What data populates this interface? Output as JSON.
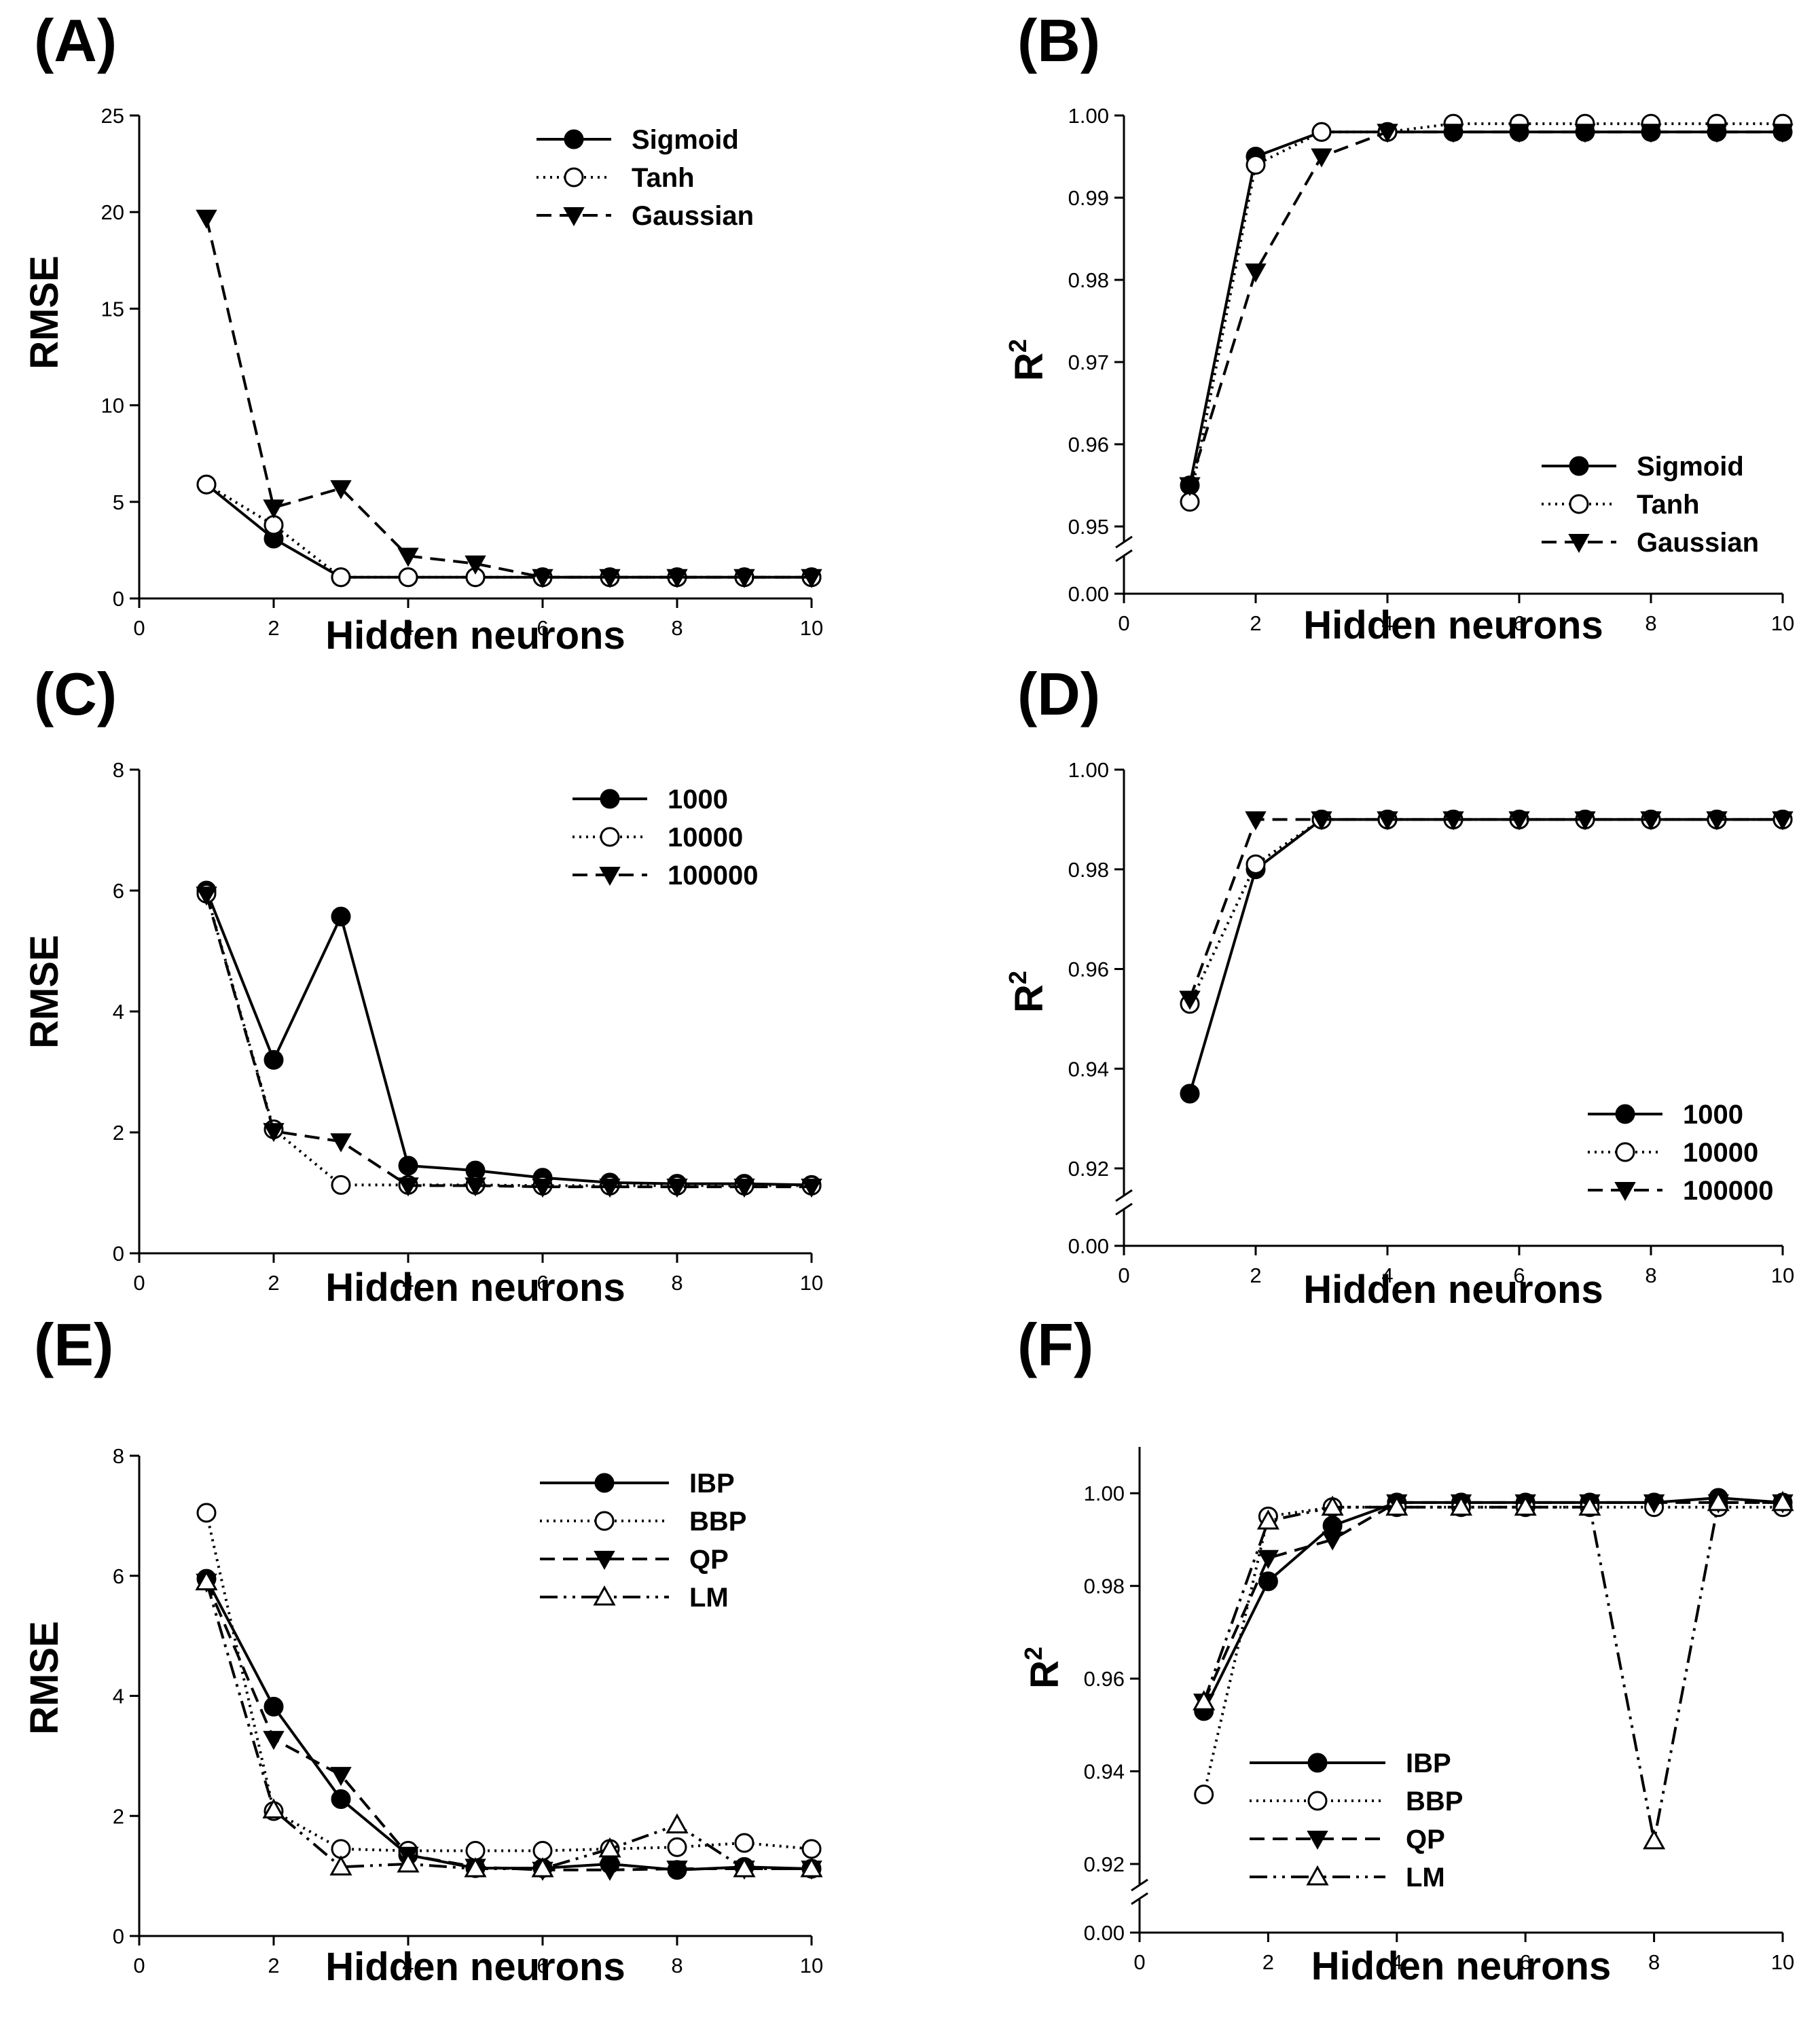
{
  "figure": {
    "x_label": "Hidden neurons"
  },
  "chart_data": [
    {
      "panel": "(A)",
      "type": "line",
      "ylabel": "RMSE",
      "xlabel": "Hidden neurons",
      "xlim": [
        0,
        10
      ],
      "ylim": [
        0,
        25
      ],
      "xticks": [
        "0",
        "2",
        "4",
        "6",
        "8",
        "10"
      ],
      "yticks": [
        "0",
        "5",
        "10",
        "15",
        "20",
        "25"
      ],
      "legend_pos": "top-right",
      "x": [
        1,
        2,
        3,
        4,
        5,
        6,
        7,
        8,
        9,
        10
      ],
      "series": [
        {
          "name": "Sigmoid",
          "marker": "filled-circle",
          "dash": "solid",
          "values": [
            5.9,
            3.1,
            1.1,
            1.1,
            1.1,
            1.1,
            1.1,
            1.1,
            1.1,
            1.1
          ]
        },
        {
          "name": "Tanh",
          "marker": "open-circle",
          "dash": "dotted",
          "values": [
            5.9,
            3.8,
            1.1,
            1.1,
            1.1,
            1.1,
            1.1,
            1.1,
            1.1,
            1.1
          ]
        },
        {
          "name": "Gaussian",
          "marker": "filled-triangle-down",
          "dash": "dashed",
          "values": [
            19.7,
            4.7,
            5.7,
            2.2,
            1.8,
            1.1,
            1.1,
            1.1,
            1.1,
            1.1
          ]
        }
      ]
    },
    {
      "panel": "(B)",
      "type": "line",
      "ylabel": "R",
      "ylabel_sup": "2",
      "xlabel": "Hidden neurons",
      "xlim": [
        0,
        10
      ],
      "ylim": [
        0.95,
        1.0
      ],
      "axis_break": true,
      "break_base": "0.00",
      "xticks": [
        "0",
        "2",
        "4",
        "6",
        "8",
        "10"
      ],
      "yticks": [
        "0.95",
        "0.96",
        "0.97",
        "0.98",
        "0.99",
        "1.00"
      ],
      "legend_pos": "bottom-right",
      "x": [
        1,
        2,
        3,
        4,
        5,
        6,
        7,
        8,
        9,
        10
      ],
      "series": [
        {
          "name": "Sigmoid",
          "marker": "filled-circle",
          "dash": "solid",
          "values": [
            0.955,
            0.995,
            0.998,
            0.998,
            0.998,
            0.998,
            0.998,
            0.998,
            0.998,
            0.998
          ]
        },
        {
          "name": "Tanh",
          "marker": "open-circle",
          "dash": "dotted",
          "values": [
            0.953,
            0.994,
            0.998,
            0.998,
            0.999,
            0.999,
            0.999,
            0.999,
            0.999,
            0.999
          ]
        },
        {
          "name": "Gaussian",
          "marker": "filled-triangle-down",
          "dash": "dashed",
          "values": [
            0.955,
            0.981,
            0.995,
            0.998,
            0.998,
            0.998,
            0.998,
            0.998,
            0.998,
            0.998
          ]
        }
      ]
    },
    {
      "panel": "(C)",
      "type": "line",
      "ylabel": "RMSE",
      "xlabel": "Hidden neurons",
      "xlim": [
        0,
        10
      ],
      "ylim": [
        0,
        8
      ],
      "xticks": [
        "0",
        "2",
        "4",
        "6",
        "8",
        "10"
      ],
      "yticks": [
        "0",
        "2",
        "4",
        "6",
        "8"
      ],
      "legend_pos": "top-right",
      "x": [
        1,
        2,
        3,
        4,
        5,
        6,
        7,
        8,
        9,
        10
      ],
      "series": [
        {
          "name": "1000",
          "marker": "filled-circle",
          "dash": "solid",
          "values": [
            6.0,
            3.2,
            5.57,
            1.45,
            1.37,
            1.25,
            1.17,
            1.15,
            1.15,
            1.13
          ]
        },
        {
          "name": "10000",
          "marker": "open-circle",
          "dash": "dotted",
          "values": [
            5.95,
            2.05,
            1.13,
            1.13,
            1.13,
            1.12,
            1.12,
            1.12,
            1.12,
            1.12
          ]
        },
        {
          "name": "100000",
          "marker": "filled-triangle-down",
          "dash": "dashed",
          "values": [
            5.93,
            2.02,
            1.85,
            1.12,
            1.12,
            1.1,
            1.1,
            1.1,
            1.1,
            1.1
          ]
        }
      ]
    },
    {
      "panel": "(D)",
      "type": "line",
      "ylabel": "R",
      "ylabel_sup": "2",
      "xlabel": "Hidden neurons",
      "xlim": [
        0,
        10
      ],
      "ylim": [
        0.92,
        1.0
      ],
      "axis_break": true,
      "break_base": "0.00",
      "xticks": [
        "0",
        "2",
        "4",
        "6",
        "8",
        "10"
      ],
      "yticks": [
        "0.92",
        "0.94",
        "0.96",
        "0.98",
        "1.00"
      ],
      "legend_pos": "bottom-right",
      "x": [
        1,
        2,
        3,
        4,
        5,
        6,
        7,
        8,
        9,
        10
      ],
      "series": [
        {
          "name": "1000",
          "marker": "filled-circle",
          "dash": "solid",
          "values": [
            0.935,
            0.98,
            0.99,
            0.99,
            0.99,
            0.99,
            0.99,
            0.99,
            0.99,
            0.99
          ]
        },
        {
          "name": "10000",
          "marker": "open-circle",
          "dash": "dotted",
          "values": [
            0.953,
            0.981,
            0.99,
            0.99,
            0.99,
            0.99,
            0.99,
            0.99,
            0.99,
            0.99
          ]
        },
        {
          "name": "100000",
          "marker": "filled-triangle-down",
          "dash": "dashed",
          "values": [
            0.954,
            0.99,
            0.99,
            0.99,
            0.99,
            0.99,
            0.99,
            0.99,
            0.99,
            0.99
          ]
        }
      ]
    },
    {
      "panel": "(E)",
      "type": "line",
      "ylabel": "RMSE",
      "xlabel": "Hidden neurons",
      "xlim": [
        0,
        10
      ],
      "ylim": [
        0,
        8
      ],
      "xticks": [
        "0",
        "2",
        "4",
        "6",
        "8",
        "10"
      ],
      "yticks": [
        "0",
        "2",
        "4",
        "6",
        "8"
      ],
      "legend_pos": "top-right",
      "x": [
        1,
        2,
        3,
        4,
        5,
        6,
        7,
        8,
        9,
        10
      ],
      "series": [
        {
          "name": "IBP",
          "marker": "filled-circle",
          "dash": "solid",
          "values": [
            5.95,
            3.82,
            2.28,
            1.35,
            1.13,
            1.13,
            1.2,
            1.1,
            1.15,
            1.12
          ]
        },
        {
          "name": "BBP",
          "marker": "open-circle",
          "dash": "dotted",
          "values": [
            7.05,
            2.08,
            1.45,
            1.42,
            1.42,
            1.42,
            1.45,
            1.48,
            1.55,
            1.45
          ]
        },
        {
          "name": "QP",
          "marker": "filled-triangle-down",
          "dash": "dashed",
          "values": [
            5.9,
            3.28,
            2.68,
            1.35,
            1.15,
            1.1,
            1.1,
            1.12,
            1.12,
            1.12
          ]
        },
        {
          "name": "LM",
          "marker": "open-triangle-up",
          "dash": "dash-dot-dot",
          "values": [
            5.9,
            2.1,
            1.15,
            1.2,
            1.12,
            1.12,
            1.45,
            1.85,
            1.12,
            1.12
          ]
        }
      ]
    },
    {
      "panel": "(F)",
      "type": "line",
      "ylabel": "R",
      "ylabel_sup": "2",
      "xlabel": "Hidden neurons",
      "xlim": [
        0,
        10
      ],
      "ylim": [
        0.92,
        1.01
      ],
      "axis_break": true,
      "break_base": "0.00",
      "xticks": [
        "0",
        "2",
        "4",
        "6",
        "8",
        "10"
      ],
      "yticks": [
        "0.92",
        "0.94",
        "0.96",
        "0.98",
        "1.00"
      ],
      "legend_pos": "bottom-left",
      "x": [
        1,
        2,
        3,
        4,
        5,
        6,
        7,
        8,
        9,
        10
      ],
      "series": [
        {
          "name": "IBP",
          "marker": "filled-circle",
          "dash": "solid",
          "values": [
            0.953,
            0.981,
            0.993,
            0.998,
            0.998,
            0.998,
            0.998,
            0.998,
            0.999,
            0.998
          ]
        },
        {
          "name": "BBP",
          "marker": "open-circle",
          "dash": "dotted",
          "values": [
            0.935,
            0.995,
            0.997,
            0.997,
            0.997,
            0.997,
            0.997,
            0.997,
            0.997,
            0.997
          ]
        },
        {
          "name": "QP",
          "marker": "filled-triangle-down",
          "dash": "dashed",
          "values": [
            0.955,
            0.986,
            0.99,
            0.998,
            0.998,
            0.998,
            0.998,
            0.998,
            0.998,
            0.998
          ]
        },
        {
          "name": "LM",
          "marker": "open-triangle-up",
          "dash": "dash-dot-dot",
          "values": [
            0.955,
            0.994,
            0.997,
            0.997,
            0.997,
            0.997,
            0.997,
            0.925,
            0.998,
            0.998
          ]
        }
      ]
    }
  ]
}
